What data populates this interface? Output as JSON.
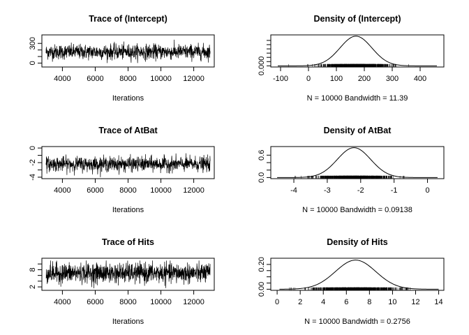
{
  "chart_data": [
    {
      "type": "line",
      "title": "Trace of (Intercept)",
      "xlabel": "Iterations",
      "ylabel": "",
      "xlim": [
        2750,
        13250
      ],
      "ylim": [
        -60,
        430
      ],
      "x_ticks": [
        4000,
        6000,
        8000,
        10000,
        12000
      ],
      "y_ticks": [
        0,
        100,
        200,
        300
      ],
      "y_tick_labels": [
        "0",
        "",
        "",
        "300"
      ],
      "series": [
        {
          "x_start": 3001,
          "x_end": 13000,
          "n": 10000,
          "mean": 170,
          "sd": 57,
          "min": 0,
          "max": 400
        }
      ]
    },
    {
      "type": "area",
      "title": "Density of (Intercept)",
      "xlabel": "N = 10000   Bandwidth = 11.39",
      "ylabel": "",
      "xlim": [
        -135,
        485
      ],
      "ylim": [
        -0.00027,
        0.0073
      ],
      "x_ticks": [
        -100,
        0,
        100,
        200,
        300,
        400
      ],
      "y_ticks": [
        0,
        0.001,
        0.002,
        0.003,
        0.004,
        0.005,
        0.006
      ],
      "y_tick_labels": [
        "0.000",
        "",
        "",
        "",
        "",
        "",
        ""
      ],
      "series": [
        {
          "mean": 170,
          "sd": 57,
          "peak": 0.007,
          "range": [
            -110,
            460
          ]
        }
      ]
    },
    {
      "type": "line",
      "title": "Trace of AtBat",
      "xlabel": "Iterations",
      "ylabel": "",
      "xlim": [
        2750,
        13250
      ],
      "ylim": [
        -4.2,
        0.2
      ],
      "x_ticks": [
        4000,
        6000,
        8000,
        10000,
        12000
      ],
      "y_ticks": [
        -4,
        -3,
        -2,
        -1,
        0
      ],
      "y_tick_labels": [
        "-4",
        "",
        "-2",
        "",
        "0"
      ],
      "series": [
        {
          "x_start": 3001,
          "x_end": 13000,
          "n": 10000,
          "mean": -2.2,
          "sd": 0.5,
          "min": -4.0,
          "max": -0.1
        }
      ]
    },
    {
      "type": "area",
      "title": "Density of AtBat",
      "xlabel": "N = 10000   Bandwidth = 0.09138",
      "ylabel": "",
      "xlim": [
        -4.69,
        0.49
      ],
      "ylim": [
        -0.03,
        0.83
      ],
      "x_ticks": [
        -4,
        -3,
        -2,
        -1,
        0
      ],
      "y_ticks": [
        0,
        0.2,
        0.4,
        0.6
      ],
      "y_tick_labels": [
        "0.0",
        "",
        "",
        "0.6"
      ],
      "series": [
        {
          "mean": -2.2,
          "sd": 0.5,
          "peak": 0.8,
          "range": [
            -4.5,
            0.3
          ]
        }
      ]
    },
    {
      "type": "line",
      "title": "Trace of Hits",
      "xlabel": "Iterations",
      "ylabel": "",
      "xlim": [
        2750,
        13250
      ],
      "ylim": [
        0.8,
        12.0
      ],
      "x_ticks": [
        4000,
        6000,
        8000,
        10000,
        12000
      ],
      "y_ticks": [
        2,
        4,
        6,
        8,
        10
      ],
      "y_tick_labels": [
        "2",
        "",
        "",
        "8",
        ""
      ],
      "series": [
        {
          "x_start": 3001,
          "x_end": 13000,
          "n": 10000,
          "mean": 6.8,
          "sd": 1.75,
          "min": 1.0,
          "max": 11.2
        }
      ]
    },
    {
      "type": "area",
      "title": "Density of Hits",
      "xlabel": "N = 10000   Bandwidth = 0.2756",
      "ylabel": "",
      "xlim": [
        -0.55,
        14.45
      ],
      "ylim": [
        -0.009,
        0.25
      ],
      "x_ticks": [
        0,
        2,
        4,
        6,
        8,
        10,
        12,
        14
      ],
      "y_ticks": [
        0,
        0.05,
        0.1,
        0.15,
        0.2
      ],
      "y_tick_labels": [
        "0.00",
        "",
        "",
        "",
        "0.20"
      ],
      "series": [
        {
          "mean": 6.8,
          "sd": 1.75,
          "peak": 0.235,
          "range": [
            0.2,
            14.0
          ]
        }
      ]
    }
  ]
}
